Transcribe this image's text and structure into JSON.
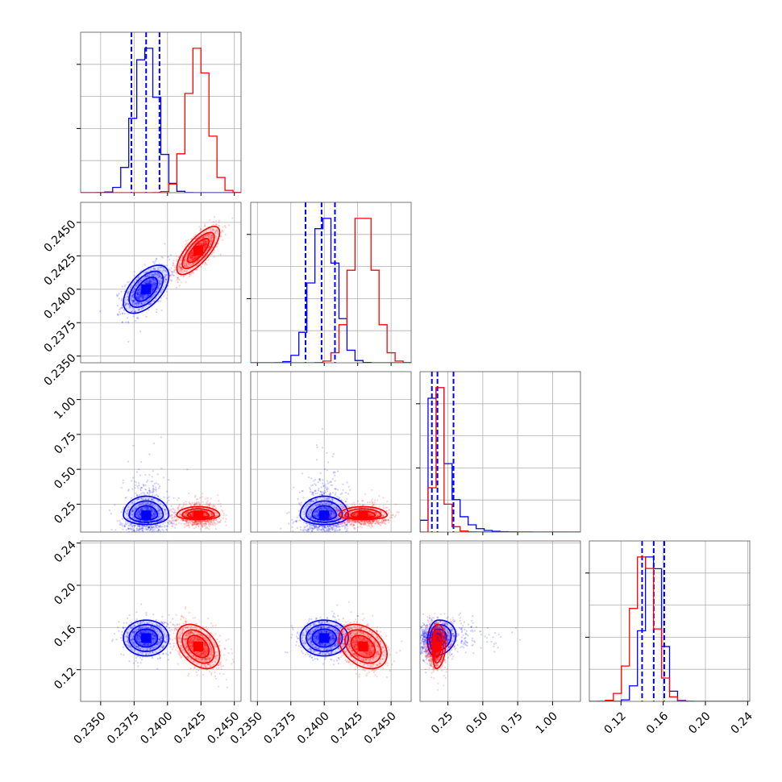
{
  "chart_data": {
    "type": "corner",
    "series_colors": {
      "blue": "#0000ff",
      "red": "#ff0000"
    },
    "grid": true,
    "quantile_line_style": "dashed",
    "parameters": [
      {
        "index": 0,
        "range": [
          0.2335,
          0.2455
        ],
        "ticks": [
          0.235,
          0.2375,
          0.24,
          0.2425,
          0.245
        ],
        "tick_labels": [
          "0.2350",
          "0.2375",
          "0.2400",
          "0.2425",
          "0.2450"
        ]
      },
      {
        "index": 1,
        "range": [
          0.2345,
          0.2465
        ],
        "ticks": [
          0.235,
          0.2375,
          0.24,
          0.2425,
          0.245
        ],
        "tick_labels": [
          "0.2350",
          "0.2375",
          "0.2400",
          "0.2425",
          "0.2450"
        ]
      },
      {
        "index": 2,
        "range": [
          0.05,
          1.2
        ],
        "ticks": [
          0.25,
          0.5,
          0.75,
          1.0
        ],
        "tick_labels": [
          "0.25",
          "0.50",
          "0.75",
          "1.00"
        ]
      },
      {
        "index": 3,
        "range": [
          0.09,
          0.242
        ],
        "ticks": [
          0.12,
          0.16,
          0.2,
          0.24
        ],
        "tick_labels": [
          "0.12",
          "0.16",
          "0.20",
          "0.24"
        ]
      }
    ],
    "series": [
      {
        "color": "blue",
        "means": [
          0.2384,
          0.24,
          0.17,
          0.15
        ],
        "sigmas": [
          0.00085,
          0.0009,
          0.055,
          0.0085
        ],
        "correlations": {
          "0-1": 0.55,
          "0-2": 0.0,
          "1-2": 0.0,
          "0-3": 0.0,
          "1-3": 0.0,
          "2-3": 0.15
        },
        "quantiles": [
          [
            0.2373,
            0.2384,
            0.2394
          ],
          [
            0.2386,
            0.2398,
            0.2408
          ],
          [
            0.135,
            0.175,
            0.29
          ],
          [
            0.14,
            0.151,
            0.161
          ]
        ]
      },
      {
        "color": "red",
        "means": [
          0.2423,
          0.2429,
          0.17,
          0.142
        ],
        "sigmas": [
          0.0008,
          0.0009,
          0.025,
          0.0105
        ],
        "correlations": {
          "0-1": 0.75,
          "0-2": 0.0,
          "1-2": 0.0,
          "0-3": -0.4,
          "1-3": -0.35,
          "2-3": 0.1
        }
      }
    ]
  }
}
